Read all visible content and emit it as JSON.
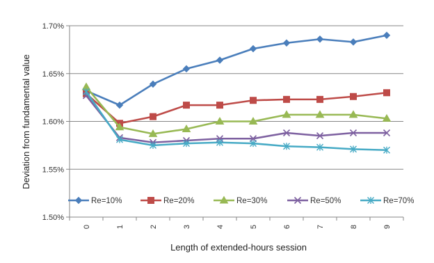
{
  "chart_data": {
    "type": "line",
    "title": "",
    "xlabel": "Length of extended-hours session",
    "ylabel": "Deviation from fundamental value",
    "x": [
      0,
      1,
      2,
      3,
      4,
      5,
      6,
      7,
      8,
      9
    ],
    "x_tick_labels": [
      "0",
      "1",
      "2",
      "3",
      "4",
      "5",
      "6",
      "7",
      "8",
      "9"
    ],
    "ylim": [
      1.5,
      1.7
    ],
    "y_ticks": [
      1.5,
      1.55,
      1.6,
      1.65,
      1.7
    ],
    "y_tick_labels": [
      "1.50%",
      "1.55%",
      "1.60%",
      "1.65%",
      "1.70%"
    ],
    "grid": "horizontal",
    "legend_position": "bottom-inside",
    "series": [
      {
        "name": "Re=10%",
        "marker": "diamond",
        "color": "#4A7EBB",
        "values": [
          1.632,
          1.617,
          1.639,
          1.655,
          1.664,
          1.676,
          1.682,
          1.686,
          1.683,
          1.69
        ]
      },
      {
        "name": "Re=20%",
        "marker": "square",
        "color": "#BE4B48",
        "values": [
          1.629,
          1.598,
          1.605,
          1.617,
          1.617,
          1.622,
          1.623,
          1.623,
          1.626,
          1.63
        ]
      },
      {
        "name": "Re=30%",
        "marker": "triangle",
        "color": "#98B954",
        "values": [
          1.636,
          1.594,
          1.587,
          1.592,
          1.6,
          1.6,
          1.607,
          1.607,
          1.607,
          1.603
        ]
      },
      {
        "name": "Re=50%",
        "marker": "x",
        "color": "#7D60A0",
        "values": [
          1.627,
          1.583,
          1.578,
          1.58,
          1.582,
          1.582,
          1.588,
          1.585,
          1.588,
          1.588
        ]
      },
      {
        "name": "Re=70%",
        "marker": "star",
        "color": "#46AAC5",
        "values": [
          1.631,
          1.581,
          1.575,
          1.577,
          1.578,
          1.577,
          1.574,
          1.573,
          1.571,
          1.57
        ]
      }
    ]
  }
}
